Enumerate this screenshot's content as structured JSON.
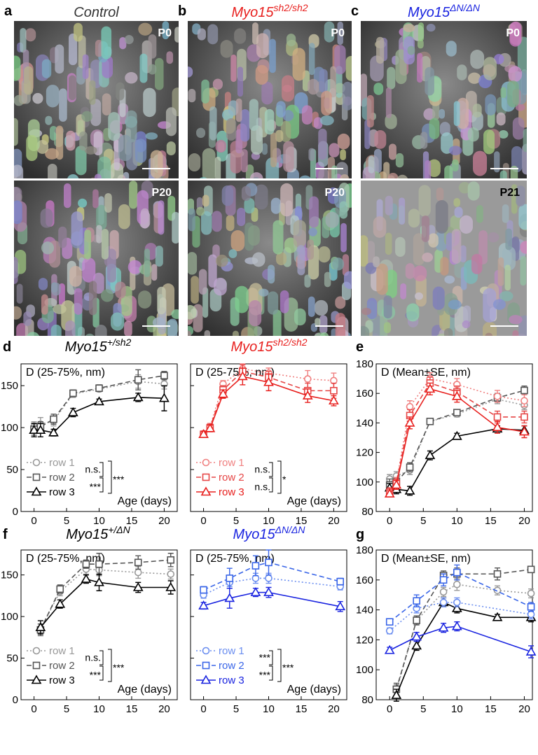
{
  "images": [
    {
      "letter": "a",
      "title": "Control",
      "color": "#333333",
      "frames": [
        "P0",
        "P20"
      ]
    },
    {
      "letter": "b",
      "title": "Myo15",
      "title_sup": "sh2/sh2",
      "color": "#e8201e",
      "frames": [
        "P0",
        "P20"
      ]
    },
    {
      "letter": "c",
      "title": "Myo15",
      "title_sup": "ΔN/ΔN",
      "color": "#1a24e0",
      "frames": [
        "P0",
        "P21"
      ]
    }
  ],
  "chart_data": [
    {
      "type": "line",
      "panel": "d",
      "title": "Myo15",
      "title_sup": "+/sh2",
      "title_color": "#000000",
      "ylabel": "D (25-75%, nm)",
      "xlabel": "Age (days)",
      "xlim": [
        -2,
        22
      ],
      "ylim": [
        0,
        176
      ],
      "xticks": [
        0,
        5,
        10,
        15,
        20
      ],
      "yticks": [
        0,
        50,
        100,
        150
      ],
      "ytick_labels": true,
      "legend": "lower left",
      "series": [
        {
          "name": "row 1",
          "color": "#999999",
          "dash": "dotted",
          "marker": "circle",
          "x": [
            0,
            1,
            3,
            6,
            10,
            16,
            20
          ],
          "values": [
            101,
            104,
            108,
            140,
            146,
            155,
            152
          ],
          "errors": [
            6,
            8,
            6,
            4,
            3,
            8,
            6
          ]
        },
        {
          "name": "row 2",
          "color": "#555555",
          "dash": "dashed",
          "marker": "square",
          "x": [
            0,
            1,
            3,
            6,
            10,
            16,
            20
          ],
          "values": [
            98,
            101,
            110,
            141,
            147,
            157,
            162
          ],
          "errors": [
            7,
            6,
            6,
            4,
            4,
            12,
            5
          ]
        },
        {
          "name": "row 3",
          "color": "#000000",
          "dash": "solid",
          "marker": "triangle",
          "x": [
            0,
            1,
            3,
            6,
            10,
            16,
            20
          ],
          "values": [
            97,
            97,
            94,
            118,
            131,
            136,
            135
          ],
          "errors": [
            8,
            8,
            4,
            5,
            3,
            5,
            15
          ]
        }
      ],
      "significance": [
        "n.s.",
        "***",
        "***"
      ]
    },
    {
      "type": "line",
      "title": "Myo15",
      "title_sup": "sh2/sh2",
      "title_color": "#e8201e",
      "ylabel": "D (25-75%, nm)",
      "xlabel": "Age (days)",
      "xlim": [
        -2,
        22
      ],
      "ylim": [
        0,
        176
      ],
      "xticks": [
        0,
        5,
        10,
        15,
        20
      ],
      "yticks": [
        0,
        50,
        100,
        150
      ],
      "ytick_labels": false,
      "legend": "lower left",
      "series": [
        {
          "name": "row 1",
          "color": "#f08080",
          "dash": "dotted",
          "marker": "circle",
          "x": [
            0,
            1,
            3,
            6,
            10,
            16,
            20
          ],
          "values": [
            93,
            101,
            152,
            170,
            165,
            158,
            156
          ],
          "errors": [
            3,
            4,
            4,
            6,
            6,
            10,
            9
          ]
        },
        {
          "name": "row 2",
          "color": "#e64646",
          "dash": "dashed",
          "marker": "square",
          "x": [
            0,
            1,
            3,
            6,
            10,
            16,
            20
          ],
          "values": [
            92,
            100,
            145,
            167,
            160,
            144,
            144
          ],
          "errors": [
            3,
            4,
            5,
            8,
            7,
            9,
            9
          ]
        },
        {
          "name": "row 3",
          "color": "#e8201e",
          "dash": "solid",
          "marker": "triangle",
          "x": [
            0,
            1,
            3,
            6,
            10,
            16,
            20
          ],
          "values": [
            92,
            99,
            140,
            161,
            154,
            138,
            132
          ],
          "errors": [
            3,
            4,
            5,
            10,
            10,
            8,
            6
          ]
        }
      ],
      "significance": [
        "n.s.",
        "n.s.",
        "*"
      ]
    },
    {
      "type": "line",
      "panel": "e",
      "ylabel": "D (Mean±SE, nm)",
      "xlim": [
        -2,
        21.2
      ],
      "ylim": [
        80,
        180
      ],
      "xticks": [
        0,
        5,
        10,
        15,
        20
      ],
      "yticks": [
        80,
        100,
        120,
        140,
        160,
        180
      ],
      "ytick_labels": true,
      "series": [
        {
          "color": "#999999",
          "dash": "dotted",
          "marker": "circle",
          "x": [
            0,
            1,
            3,
            6,
            10,
            16,
            20
          ],
          "values": [
            102,
            104,
            108,
            141,
            146,
            156,
            152
          ],
          "errors": [
            3,
            3,
            3,
            2,
            2,
            3,
            3
          ]
        },
        {
          "color": "#555555",
          "dash": "dashed",
          "marker": "square",
          "x": [
            0,
            1,
            3,
            6,
            10,
            16,
            20
          ],
          "values": [
            98,
            100,
            110,
            141,
            147,
            157,
            162
          ],
          "errors": [
            4,
            3,
            3,
            2,
            2,
            3,
            3
          ]
        },
        {
          "color": "#000000",
          "dash": "solid",
          "marker": "triangle",
          "x": [
            0,
            1,
            3,
            6,
            10,
            16,
            20
          ],
          "values": [
            96,
            95,
            94,
            118,
            131,
            136,
            135
          ],
          "errors": [
            3,
            3,
            3,
            3,
            2,
            2,
            3
          ]
        },
        {
          "color": "#f08080",
          "dash": "dotted",
          "marker": "circle",
          "x": [
            0,
            1,
            3,
            6,
            10,
            16,
            20
          ],
          "values": [
            93,
            100,
            151,
            170,
            166,
            158,
            155
          ],
          "errors": [
            3,
            3,
            4,
            4,
            4,
            4,
            4
          ]
        },
        {
          "color": "#e64646",
          "dash": "dashed",
          "marker": "square",
          "x": [
            0,
            1,
            3,
            6,
            10,
            16,
            20
          ],
          "values": [
            93,
            99,
            145,
            167,
            161,
            144,
            144
          ],
          "errors": [
            3,
            3,
            4,
            4,
            4,
            4,
            4
          ]
        },
        {
          "color": "#e8201e",
          "dash": "solid",
          "marker": "triangle",
          "x": [
            0,
            1,
            3,
            6,
            10,
            16,
            20
          ],
          "values": [
            92,
            98,
            140,
            163,
            158,
            137,
            134
          ],
          "errors": [
            2,
            3,
            4,
            4,
            4,
            4,
            4
          ]
        }
      ]
    },
    {
      "type": "line",
      "panel": "f",
      "title": "Myo15",
      "title_sup": "+/ΔN",
      "title_color": "#000000",
      "ylabel": "D (25-75%, nm)",
      "xlabel": "Age (days)",
      "xlim": [
        -2,
        22
      ],
      "ylim": [
        0,
        180
      ],
      "xticks": [
        0,
        5,
        10,
        15,
        20
      ],
      "yticks": [
        0,
        50,
        100,
        150
      ],
      "ytick_labels": true,
      "legend": "lower left",
      "series": [
        {
          "name": "row 1",
          "color": "#999999",
          "dash": "dotted",
          "marker": "circle",
          "x": [
            1,
            4,
            8,
            10,
            16,
            21
          ],
          "values": [
            85,
            130,
            157,
            156,
            153,
            151
          ],
          "errors": [
            6,
            5,
            6,
            7,
            7,
            6
          ]
        },
        {
          "name": "row 2",
          "color": "#555555",
          "dash": "dashed",
          "marker": "square",
          "x": [
            1,
            4,
            8,
            10,
            16,
            21
          ],
          "values": [
            84,
            133,
            163,
            163,
            165,
            168
          ],
          "errors": [
            7,
            5,
            5,
            13,
            8,
            8
          ]
        },
        {
          "name": "row 3",
          "color": "#000000",
          "dash": "solid",
          "marker": "triangle",
          "x": [
            1,
            4,
            8,
            10,
            16,
            21
          ],
          "values": [
            87,
            115,
            145,
            141,
            135,
            135
          ],
          "errors": [
            8,
            5,
            5,
            10,
            6,
            8
          ]
        }
      ],
      "significance": [
        "n.s.",
        "***",
        "***"
      ]
    },
    {
      "type": "line",
      "title": "Myo15",
      "title_sup": "ΔN/ΔN",
      "title_color": "#1a24e0",
      "ylabel": "D (25-75%, nm)",
      "xlabel": "Age (days)",
      "xlim": [
        -2,
        22
      ],
      "ylim": [
        0,
        180
      ],
      "xticks": [
        0,
        5,
        10,
        15,
        20
      ],
      "yticks": [
        0,
        50,
        100,
        150
      ],
      "ytick_labels": false,
      "legend": "lower left",
      "series": [
        {
          "name": "row 1",
          "color": "#6b8ef0",
          "dash": "dotted",
          "marker": "circle",
          "x": [
            0,
            4,
            8,
            10,
            21
          ],
          "values": [
            126,
            141,
            146,
            146,
            136
          ],
          "errors": [
            4,
            5,
            6,
            6,
            4
          ]
        },
        {
          "name": "row 2",
          "color": "#3a66e8",
          "dash": "dashed",
          "marker": "square",
          "x": [
            0,
            4,
            8,
            10,
            21
          ],
          "values": [
            132,
            146,
            161,
            165,
            142
          ],
          "errors": [
            4,
            12,
            12,
            15,
            4
          ]
        },
        {
          "name": "row 3",
          "color": "#1a24e0",
          "dash": "solid",
          "marker": "triangle",
          "x": [
            0,
            4,
            8,
            10,
            21
          ],
          "values": [
            113,
            122,
            129,
            129,
            112
          ],
          "errors": [
            4,
            12,
            5,
            6,
            6
          ]
        }
      ],
      "significance": [
        "***",
        "***",
        "***"
      ]
    },
    {
      "type": "line",
      "panel": "g",
      "ylabel": "D (Mean±SE, nm)",
      "xlim": [
        -2,
        21.2
      ],
      "ylim": [
        80,
        180
      ],
      "xticks": [
        0,
        5,
        10,
        15,
        20
      ],
      "yticks": [
        80,
        100,
        120,
        140,
        160,
        180
      ],
      "ytick_labels": true,
      "series": [
        {
          "color": "#999999",
          "dash": "dotted",
          "marker": "circle",
          "x": [
            1,
            4,
            8,
            10,
            16,
            21
          ],
          "values": [
            86,
            133,
            152,
            157,
            153,
            151
          ],
          "errors": [
            4,
            3,
            3,
            4,
            3,
            3
          ]
        },
        {
          "color": "#555555",
          "dash": "dashed",
          "marker": "square",
          "x": [
            1,
            4,
            8,
            10,
            16,
            21
          ],
          "values": [
            87,
            133,
            163,
            164,
            164,
            167
          ],
          "errors": [
            4,
            3,
            3,
            4,
            4,
            2
          ]
        },
        {
          "color": "#000000",
          "dash": "solid",
          "marker": "triangle",
          "x": [
            1,
            4,
            8,
            10,
            16,
            21
          ],
          "values": [
            83,
            116,
            145,
            141,
            135,
            135
          ],
          "errors": [
            4,
            3,
            3,
            3,
            2,
            3
          ]
        },
        {
          "color": "#6b8ef0",
          "dash": "dotted",
          "marker": "circle",
          "x": [
            0,
            4,
            8,
            10,
            21
          ],
          "values": [
            126,
            141,
            145,
            145,
            137
          ],
          "errors": [
            2,
            3,
            3,
            3,
            3
          ]
        },
        {
          "color": "#3a66e8",
          "dash": "dashed",
          "marker": "square",
          "x": [
            0,
            4,
            8,
            10,
            21
          ],
          "values": [
            132,
            146,
            160,
            165,
            142
          ],
          "errors": [
            2,
            4,
            4,
            5,
            3
          ]
        },
        {
          "color": "#1a24e0",
          "dash": "solid",
          "marker": "triangle",
          "x": [
            0,
            4,
            8,
            10,
            21
          ],
          "values": [
            113,
            122,
            128,
            129,
            112
          ],
          "errors": [
            2,
            3,
            3,
            3,
            4
          ]
        }
      ]
    }
  ]
}
